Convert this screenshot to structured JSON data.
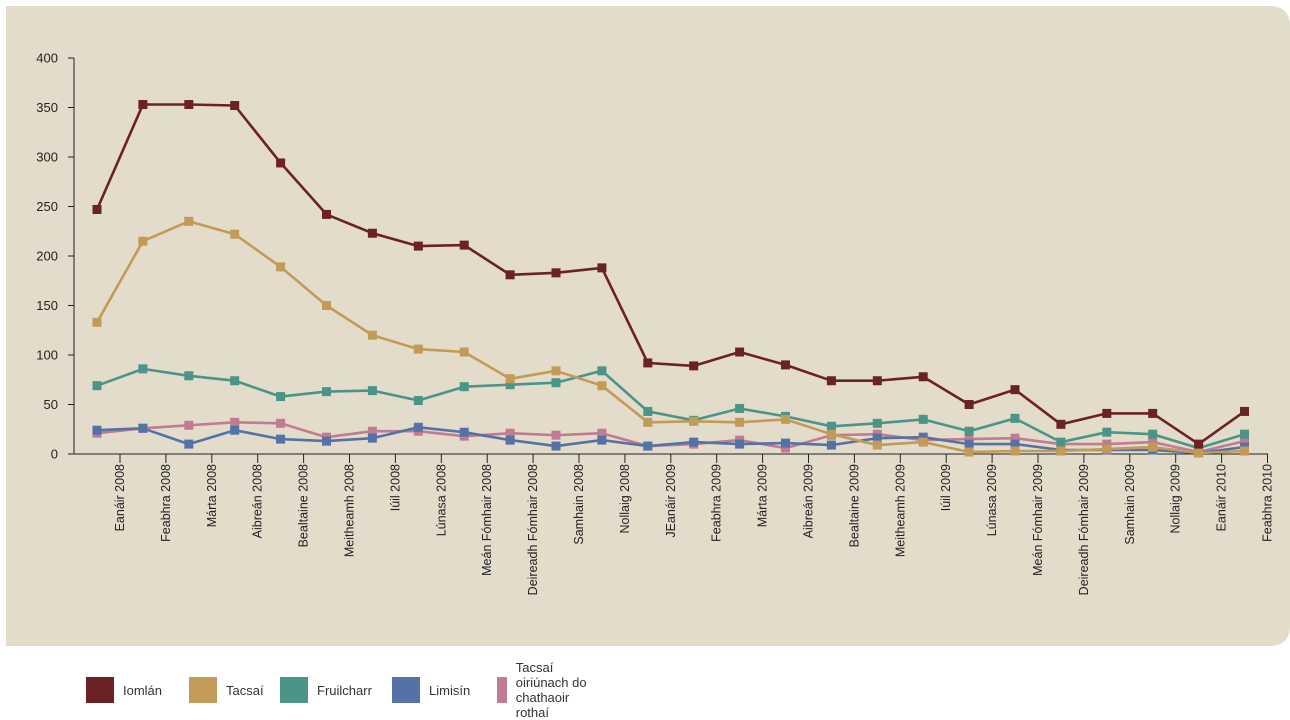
{
  "chart_data": {
    "type": "line",
    "title": "",
    "xlabel": "",
    "ylabel": "",
    "ylim": [
      0,
      400
    ],
    "yticks": [
      0,
      50,
      100,
      150,
      200,
      250,
      300,
      350,
      400
    ],
    "grid": false,
    "legend_position": "bottom",
    "categories": [
      "Eanáir 2008",
      "Feabhra 2008",
      "Márta 2008",
      "Aibreán 2008",
      "Bealtaine 2008",
      "Meitheamh 2008",
      "Iúil 2008",
      "Lúnasa 2008",
      "Meán Fómhair 2008",
      "Deireadh Fómhair 2008",
      "Samhain 2008",
      "Nollaig 2008",
      "JEanáir 2009",
      "Feabhra 2009",
      "Márta 2009",
      "Aibreán 2009",
      "Bealtaine 2009",
      "Meitheamh 2009",
      "Iúil 2009",
      "Lúnasa 2009",
      "Meán Fómhair 2009",
      "Deireadh Fómhair 2009",
      "Samhain 2009",
      "Nollaig 2009",
      "Eanáir 2010",
      "Feabhra 2010"
    ],
    "series": [
      {
        "name": "Iomlán",
        "color": "#6b2225",
        "values": [
          247,
          353,
          353,
          352,
          294,
          242,
          223,
          210,
          211,
          181,
          183,
          188,
          92,
          89,
          103,
          90,
          74,
          74,
          78,
          50,
          65,
          30,
          41,
          41,
          10,
          43
        ]
      },
      {
        "name": "Tacsaí",
        "color": "#c19b57",
        "values": [
          133,
          215,
          235,
          222,
          189,
          150,
          120,
          106,
          103,
          76,
          84,
          69,
          32,
          33,
          32,
          35,
          20,
          9,
          12,
          2,
          3,
          3,
          5,
          7,
          1,
          3
        ]
      },
      {
        "name": "Fruilcharr",
        "color": "#4a9488",
        "values": [
          69,
          86,
          79,
          74,
          58,
          63,
          64,
          54,
          68,
          70,
          72,
          84,
          43,
          34,
          46,
          38,
          28,
          31,
          35,
          23,
          36,
          12,
          22,
          20,
          6,
          20
        ]
      },
      {
        "name": "Limisín",
        "color": "#5572a6",
        "values": [
          24,
          26,
          10,
          24,
          15,
          13,
          16,
          27,
          22,
          14,
          8,
          14,
          8,
          12,
          10,
          11,
          9,
          16,
          17,
          10,
          10,
          4,
          4,
          4,
          1,
          7
        ]
      },
      {
        "name": "Tacsaí oiriúnach do chathaoir rothaí",
        "color": "#c17b92",
        "values": [
          21,
          26,
          29,
          32,
          31,
          17,
          23,
          23,
          18,
          21,
          19,
          21,
          8,
          10,
          14,
          6,
          19,
          20,
          14,
          15,
          16,
          10,
          10,
          12,
          2,
          13
        ]
      }
    ]
  }
}
